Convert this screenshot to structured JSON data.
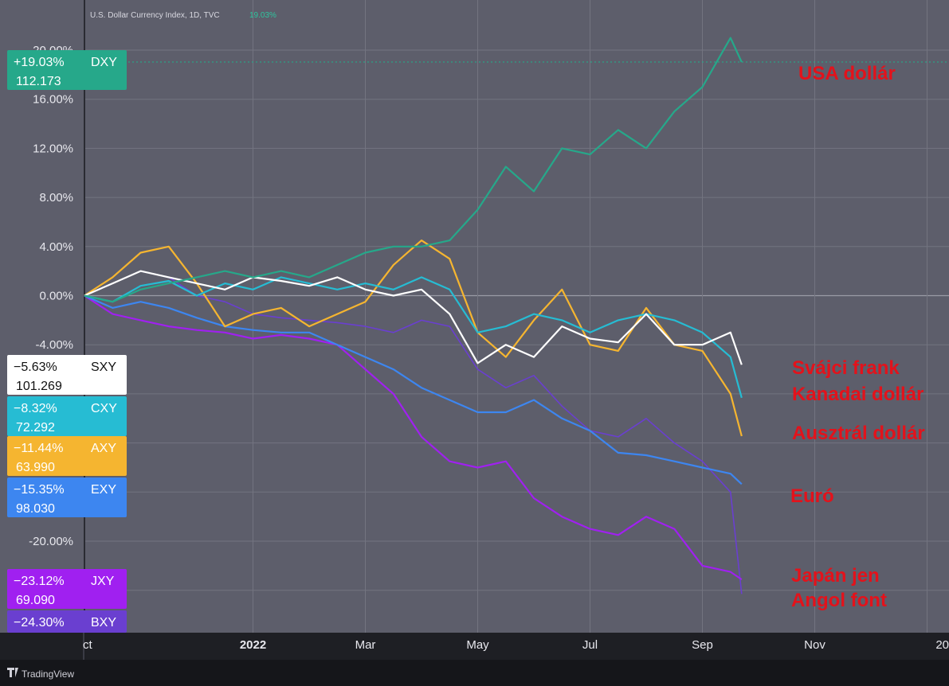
{
  "header": {
    "title": "U.S. Dollar Currency Index, 1D, TVC",
    "value": "19.03%"
  },
  "footer": {
    "brand": "TradingView"
  },
  "colors": {
    "DXY": "#26a88a",
    "SXY": "#ffffff",
    "CXY": "#26bcd3",
    "AXY": "#f5b530",
    "EXY": "#3d86f0",
    "JXY": "#a020f0",
    "BXY": "#6a3fd0",
    "annotation": "#e3121b",
    "background": "#5d5e6b"
  },
  "annotations": [
    "USA dollár",
    "Svájci frank",
    "Kanadai dollár",
    "Ausztrál dollár",
    "Euró",
    "Japán jen",
    "Angol font"
  ],
  "chart_data": {
    "type": "line",
    "title": "U.S. Dollar Currency Index, 1D, TVC",
    "ylim": [
      -24.3,
      22
    ],
    "y_ticks": [
      "20.00%",
      "16.00%",
      "12.00%",
      "8.00%",
      "4.00%",
      "0.00%",
      "-4.00%",
      "-20.00%"
    ],
    "y_tick_values": [
      20,
      16,
      12,
      8,
      4,
      0,
      -4,
      -20
    ],
    "x_ticks": [
      "ct",
      "2022",
      "Mar",
      "May",
      "Jul",
      "Sep",
      "Nov",
      "20"
    ],
    "x_tick_values": [
      0,
      3,
      5,
      7,
      9,
      11,
      13,
      15
    ],
    "x_unit": "months since Oct 2021",
    "legend": [
      {
        "symbol": "DXY",
        "pct": "+19.03%",
        "price": "112.173"
      },
      {
        "symbol": "SXY",
        "pct": "−5.63%",
        "price": "101.269"
      },
      {
        "symbol": "CXY",
        "pct": "−8.32%",
        "price": "72.292"
      },
      {
        "symbol": "AXY",
        "pct": "−11.44%",
        "price": "63.990"
      },
      {
        "symbol": "EXY",
        "pct": "−15.35%",
        "price": "98.030"
      },
      {
        "symbol": "JXY",
        "pct": "−23.12%",
        "price": "69.090"
      },
      {
        "symbol": "BXY",
        "pct": "−24.30%",
        "price": ""
      }
    ],
    "series": [
      {
        "name": "DXY",
        "points": [
          [
            0,
            0
          ],
          [
            0.5,
            -0.5
          ],
          [
            1,
            0.5
          ],
          [
            1.5,
            1
          ],
          [
            2,
            1.5
          ],
          [
            2.5,
            2
          ],
          [
            3,
            1.5
          ],
          [
            3.5,
            2
          ],
          [
            4,
            1.5
          ],
          [
            4.5,
            2.5
          ],
          [
            5,
            3.5
          ],
          [
            5.5,
            4
          ],
          [
            6,
            4
          ],
          [
            6.5,
            4.5
          ],
          [
            7,
            7
          ],
          [
            7.5,
            10.5
          ],
          [
            8,
            8.5
          ],
          [
            8.5,
            12
          ],
          [
            9,
            11.5
          ],
          [
            9.5,
            13.5
          ],
          [
            10,
            12
          ],
          [
            10.5,
            15
          ],
          [
            11,
            17
          ],
          [
            11.5,
            21
          ],
          [
            11.7,
            19.03
          ]
        ]
      },
      {
        "name": "SXY",
        "points": [
          [
            0,
            0
          ],
          [
            0.5,
            1
          ],
          [
            1,
            2
          ],
          [
            1.5,
            1.5
          ],
          [
            2,
            1
          ],
          [
            2.5,
            0.5
          ],
          [
            3,
            1.5
          ],
          [
            3.5,
            1.2
          ],
          [
            4,
            0.8
          ],
          [
            4.5,
            1.5
          ],
          [
            5,
            0.5
          ],
          [
            5.5,
            0
          ],
          [
            6,
            0.5
          ],
          [
            6.5,
            -1.5
          ],
          [
            7,
            -5.5
          ],
          [
            7.5,
            -4
          ],
          [
            8,
            -5
          ],
          [
            8.5,
            -2.5
          ],
          [
            9,
            -3.5
          ],
          [
            9.5,
            -3.8
          ],
          [
            10,
            -1.5
          ],
          [
            10.5,
            -4
          ],
          [
            11,
            -4
          ],
          [
            11.5,
            -3
          ],
          [
            11.7,
            -5.63
          ]
        ]
      },
      {
        "name": "CXY",
        "points": [
          [
            0,
            0
          ],
          [
            0.5,
            -0.5
          ],
          [
            1,
            0.8
          ],
          [
            1.5,
            1.2
          ],
          [
            2,
            0
          ],
          [
            2.5,
            1
          ],
          [
            3,
            0.5
          ],
          [
            3.5,
            1.5
          ],
          [
            4,
            1
          ],
          [
            4.5,
            0.5
          ],
          [
            5,
            1
          ],
          [
            5.5,
            0.5
          ],
          [
            6,
            1.5
          ],
          [
            6.5,
            0.5
          ],
          [
            7,
            -3
          ],
          [
            7.5,
            -2.5
          ],
          [
            8,
            -1.5
          ],
          [
            8.5,
            -2
          ],
          [
            9,
            -3
          ],
          [
            9.5,
            -2
          ],
          [
            10,
            -1.5
          ],
          [
            10.5,
            -2
          ],
          [
            11,
            -3
          ],
          [
            11.5,
            -5
          ],
          [
            11.7,
            -8.32
          ]
        ]
      },
      {
        "name": "AXY",
        "points": [
          [
            0,
            0
          ],
          [
            0.5,
            1.5
          ],
          [
            1,
            3.5
          ],
          [
            1.5,
            4
          ],
          [
            2,
            1
          ],
          [
            2.5,
            -2.5
          ],
          [
            3,
            -1.5
          ],
          [
            3.5,
            -1
          ],
          [
            4,
            -2.5
          ],
          [
            4.5,
            -1.5
          ],
          [
            5,
            -0.5
          ],
          [
            5.5,
            2.5
          ],
          [
            6,
            4.5
          ],
          [
            6.5,
            3
          ],
          [
            7,
            -3
          ],
          [
            7.5,
            -5
          ],
          [
            8,
            -2
          ],
          [
            8.5,
            0.5
          ],
          [
            9,
            -4
          ],
          [
            9.5,
            -4.5
          ],
          [
            10,
            -1
          ],
          [
            10.5,
            -4
          ],
          [
            11,
            -4.5
          ],
          [
            11.5,
            -8
          ],
          [
            11.7,
            -11.44
          ]
        ]
      },
      {
        "name": "EXY",
        "points": [
          [
            0,
            0
          ],
          [
            0.5,
            -1
          ],
          [
            1,
            -0.5
          ],
          [
            1.5,
            -1
          ],
          [
            2,
            -1.8
          ],
          [
            2.5,
            -2.5
          ],
          [
            3,
            -2.8
          ],
          [
            3.5,
            -3
          ],
          [
            4,
            -3
          ],
          [
            4.5,
            -4
          ],
          [
            5,
            -5
          ],
          [
            5.5,
            -6
          ],
          [
            6,
            -7.5
          ],
          [
            6.5,
            -8.5
          ],
          [
            7,
            -9.5
          ],
          [
            7.5,
            -9.5
          ],
          [
            8,
            -8.5
          ],
          [
            8.5,
            -10
          ],
          [
            9,
            -11
          ],
          [
            9.5,
            -12.8
          ],
          [
            10,
            -13
          ],
          [
            10.5,
            -13.5
          ],
          [
            11,
            -14
          ],
          [
            11.5,
            -14.5
          ],
          [
            11.7,
            -15.35
          ]
        ]
      },
      {
        "name": "JXY",
        "points": [
          [
            0,
            0
          ],
          [
            0.5,
            -1.5
          ],
          [
            1,
            -2
          ],
          [
            1.5,
            -2.5
          ],
          [
            2,
            -2.8
          ],
          [
            2.5,
            -3
          ],
          [
            3,
            -3.5
          ],
          [
            3.5,
            -3.2
          ],
          [
            4,
            -3.5
          ],
          [
            4.5,
            -4
          ],
          [
            5,
            -6
          ],
          [
            5.5,
            -8
          ],
          [
            6,
            -11.5
          ],
          [
            6.5,
            -13.5
          ],
          [
            7,
            -14
          ],
          [
            7.5,
            -13.5
          ],
          [
            8,
            -16.5
          ],
          [
            8.5,
            -18
          ],
          [
            9,
            -19
          ],
          [
            9.5,
            -19.5
          ],
          [
            10,
            -18
          ],
          [
            10.5,
            -19
          ],
          [
            11,
            -22
          ],
          [
            11.5,
            -22.5
          ],
          [
            11.7,
            -23.12
          ]
        ]
      },
      {
        "name": "BXY",
        "points": [
          [
            0,
            0
          ],
          [
            0.5,
            1
          ],
          [
            1,
            2
          ],
          [
            1.5,
            1.5
          ],
          [
            2,
            0
          ],
          [
            2.5,
            -0.5
          ],
          [
            3,
            -1.5
          ],
          [
            3.5,
            -1.8
          ],
          [
            4,
            -2
          ],
          [
            4.5,
            -2.2
          ],
          [
            5,
            -2.5
          ],
          [
            5.5,
            -3
          ],
          [
            6,
            -2
          ],
          [
            6.5,
            -2.5
          ],
          [
            7,
            -6
          ],
          [
            7.5,
            -7.5
          ],
          [
            8,
            -6.5
          ],
          [
            8.5,
            -9
          ],
          [
            9,
            -11
          ],
          [
            9.5,
            -11.5
          ],
          [
            10,
            -10
          ],
          [
            10.5,
            -12
          ],
          [
            11,
            -13.5
          ],
          [
            11.5,
            -16
          ],
          [
            11.7,
            -24.3
          ]
        ]
      }
    ]
  }
}
